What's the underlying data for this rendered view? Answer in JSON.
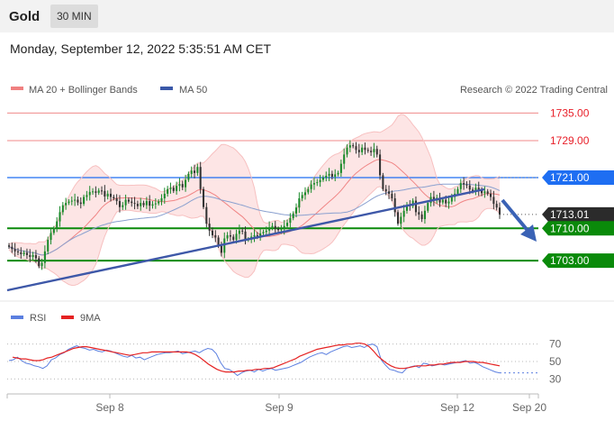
{
  "header": {
    "title": "Gold",
    "timeframe": "30 MIN"
  },
  "date_line": "Monday, September 12, 2022 5:35:51 AM CET",
  "legend": {
    "bb": "MA 20 + Bollinger Bands",
    "ma50": "MA 50",
    "copyright": "Research © 2022 Trading Central"
  },
  "rsi_legend": {
    "rsi": "RSI",
    "ma9": "9MA"
  },
  "colors": {
    "up": "#1b8a2b",
    "down": "#333333",
    "bb": "#f4a9a9",
    "ma50": "#8aa0cf",
    "support": "#0a8a0a",
    "resistance": "#1e6ef2"
  },
  "chart_data": [
    {
      "type": "candlestick",
      "instrument": "Gold",
      "interval": "30 MIN",
      "x_ticks": [
        "Sep 8",
        "Sep 9",
        "Sep 12",
        "Sep 20"
      ],
      "ylim": [
        1695,
        1738
      ],
      "levels": [
        {
          "label": "1735.00",
          "value": 1735.0,
          "kind": "resistance"
        },
        {
          "label": "1729.00",
          "value": 1729.0,
          "kind": "resistance"
        },
        {
          "label": "1721.00",
          "value": 1721.0,
          "kind": "pivot"
        },
        {
          "label": "1713.01",
          "value": 1713.01,
          "kind": "last"
        },
        {
          "label": "1710.00",
          "value": 1710.0,
          "kind": "support"
        },
        {
          "label": "1703.00",
          "value": 1703.0,
          "kind": "support"
        }
      ],
      "close": [
        1706,
        1705.5,
        1705,
        1704.8,
        1704.4,
        1704.7,
        1704.2,
        1703.8,
        1704.2,
        1703.5,
        1701.8,
        1702.5,
        1705,
        1707.5,
        1709,
        1710,
        1711.5,
        1713.5,
        1715,
        1715.5,
        1715.8,
        1716,
        1716.2,
        1715.6,
        1715.3,
        1716.8,
        1717.2,
        1717.9,
        1718,
        1717.7,
        1718.2,
        1718.1,
        1716.9,
        1717.5,
        1716.8,
        1716.5,
        1715.9,
        1714.6,
        1715,
        1716.2,
        1715.8,
        1715.5,
        1715.3,
        1714.8,
        1715.5,
        1715,
        1715.9,
        1714.9,
        1715.2,
        1715.4,
        1715.8,
        1716.5,
        1717.5,
        1718.5,
        1718.8,
        1718.1,
        1719.2,
        1719.6,
        1718.9,
        1720.5,
        1721.8,
        1722.5,
        1722,
        1723.3,
        1718.5,
        1714.6,
        1711,
        1709.5,
        1708.5,
        1708,
        1706.2,
        1704.7,
        1707.8,
        1708.5,
        1708.2,
        1707.5,
        1708.8,
        1709.5,
        1709.3,
        1707.5,
        1707.6,
        1708.2,
        1708.5,
        1708.3,
        1708.9,
        1709.2,
        1709.5,
        1710.2,
        1710.5,
        1709.9,
        1709.6,
        1709.8,
        1710.5,
        1711.2,
        1712.2,
        1713.2,
        1714.5,
        1716.5,
        1717.2,
        1717.8,
        1718.5,
        1719.5,
        1719.8,
        1720,
        1720.5,
        1721,
        1721.4,
        1721.8,
        1721.2,
        1721.7,
        1722,
        1724,
        1726,
        1727.5,
        1728,
        1727.8,
        1727,
        1726.5,
        1727.5,
        1727,
        1726.8,
        1726.5,
        1727.2,
        1726,
        1721.5,
        1718.5,
        1718,
        1717.5,
        1716.5,
        1713.5,
        1711,
        1712.5,
        1713.8,
        1715,
        1714.8,
        1716,
        1713.5,
        1713,
        1712,
        1713.8,
        1715.5,
        1716.8,
        1716,
        1716.6,
        1715.6,
        1716.2,
        1715.4,
        1715.8,
        1716.8,
        1717.5,
        1718.5,
        1719.8,
        1719.5,
        1719.3,
        1718.4,
        1718,
        1718.8,
        1718.2,
        1717.6,
        1718,
        1717.5,
        1716.8,
        1715.3,
        1714.5,
        1713.01
      ],
      "rsi": [
        51,
        52,
        55,
        51,
        48,
        47,
        45,
        44,
        42,
        45,
        52,
        54,
        58,
        60,
        64,
        66,
        68,
        66,
        65,
        63,
        64,
        62,
        61,
        63,
        62,
        60,
        58,
        56,
        55,
        57,
        54,
        55,
        52,
        54,
        56,
        58,
        59,
        60,
        60,
        61,
        62,
        59,
        60,
        61,
        62,
        60,
        63,
        65,
        64,
        59,
        49,
        42,
        41,
        38,
        34,
        37,
        39,
        40,
        38,
        41,
        39,
        41,
        42,
        40,
        41,
        42,
        43,
        45,
        47,
        49,
        52,
        55,
        57,
        59,
        60,
        58,
        61,
        63,
        65,
        67,
        68,
        66,
        67,
        68,
        66,
        69,
        70,
        67,
        52,
        46,
        41,
        40,
        38,
        37,
        42,
        44,
        45,
        43,
        48,
        47,
        45,
        46,
        47,
        46,
        47,
        48,
        49,
        50,
        51,
        48,
        49,
        47,
        44,
        42,
        40,
        38,
        37
      ],
      "rsi_ma": [
        55,
        54,
        53,
        53,
        52,
        51,
        51,
        52,
        54,
        55,
        57,
        59,
        61,
        63,
        65,
        66,
        67,
        67,
        66,
        65,
        64,
        63,
        62,
        61,
        60,
        59,
        58,
        57,
        58,
        59,
        60,
        60,
        61,
        61,
        61,
        61,
        61,
        61,
        61,
        61,
        61,
        60,
        58,
        55,
        51,
        47,
        44,
        41,
        39,
        38,
        38,
        38,
        39,
        39,
        40,
        40,
        41,
        41,
        42,
        42,
        43,
        45,
        47,
        49,
        51,
        53,
        56,
        58,
        60,
        62,
        64,
        65,
        66,
        67,
        68,
        69,
        69,
        70,
        70,
        71,
        71,
        70,
        67,
        62,
        56,
        52,
        48,
        45,
        43,
        42,
        42,
        43,
        44,
        45,
        45,
        45,
        46,
        46,
        47,
        47,
        48,
        49,
        49,
        49,
        50,
        50,
        50,
        49,
        49,
        48,
        47,
        46,
        45
      ],
      "rsi_ticks": [
        "70",
        "50",
        "30"
      ]
    }
  ]
}
